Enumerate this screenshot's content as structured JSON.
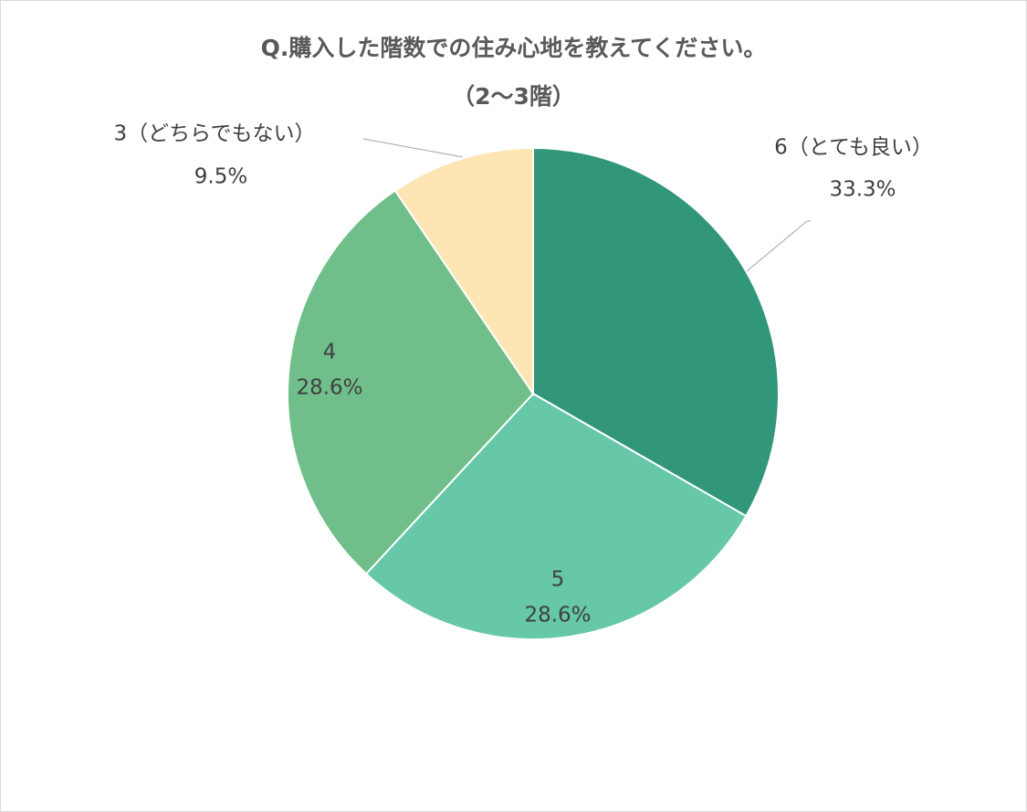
{
  "chart_data": {
    "type": "pie",
    "title": "Q.購入した階数での住み心地を教えてください。",
    "subtitle": "（2〜3階）",
    "slices": [
      {
        "label": "6（とても良い）",
        "percent_label": "33.3%",
        "value": 33.3,
        "color": "#31967a"
      },
      {
        "label": "5",
        "percent_label": "28.6%",
        "value": 28.6,
        "color": "#66c8a8"
      },
      {
        "label": "4",
        "percent_label": "28.6%",
        "value": 28.6,
        "color": "#70bf8a"
      },
      {
        "label": "3（どちらでもない）",
        "percent_label": "9.5%",
        "value": 9.5,
        "color": "#fde5b4"
      }
    ]
  }
}
